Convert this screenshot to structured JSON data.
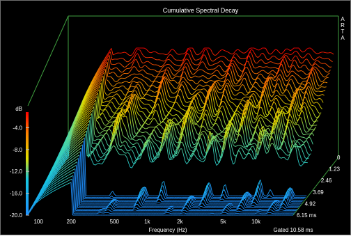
{
  "chart_data": {
    "type": "waterfall",
    "title": "Cumulative Spectral Decay",
    "watermark": "ARTA",
    "xlabel": "Frequency (Hz)",
    "ylabel": "dB",
    "x_scale": "log",
    "xlim": [
      80,
      22000
    ],
    "x_ticks": [
      {
        "value": 100,
        "label": "100"
      },
      {
        "value": 200,
        "label": "200"
      },
      {
        "value": 500,
        "label": "500"
      },
      {
        "value": 1000,
        "label": "1k"
      },
      {
        "value": 2000,
        "label": "2k"
      },
      {
        "value": 5000,
        "label": "5k"
      },
      {
        "value": 10000,
        "label": "10k"
      }
    ],
    "ylim": [
      -20,
      0
    ],
    "y_ticks": [
      -4.0,
      -8.0,
      -12.0,
      -16.0,
      -20.0
    ],
    "time_unit": "ms",
    "time_ticks": [
      0,
      1.23,
      2.46,
      3.69,
      4.92,
      6.15
    ],
    "gate_label": "Gated 10.58 ms",
    "slices": 40,
    "colormap": [
      "#1e90ff",
      "#18c8e0",
      "#50d8a0",
      "#e0e000",
      "#ff8000",
      "#ff0000"
    ],
    "peaks_hz": [
      180,
      360,
      420,
      720,
      1060,
      1500,
      2100,
      2800,
      3900,
      5000,
      6600,
      8200,
      10200,
      13000,
      16000
    ],
    "grid": false
  }
}
